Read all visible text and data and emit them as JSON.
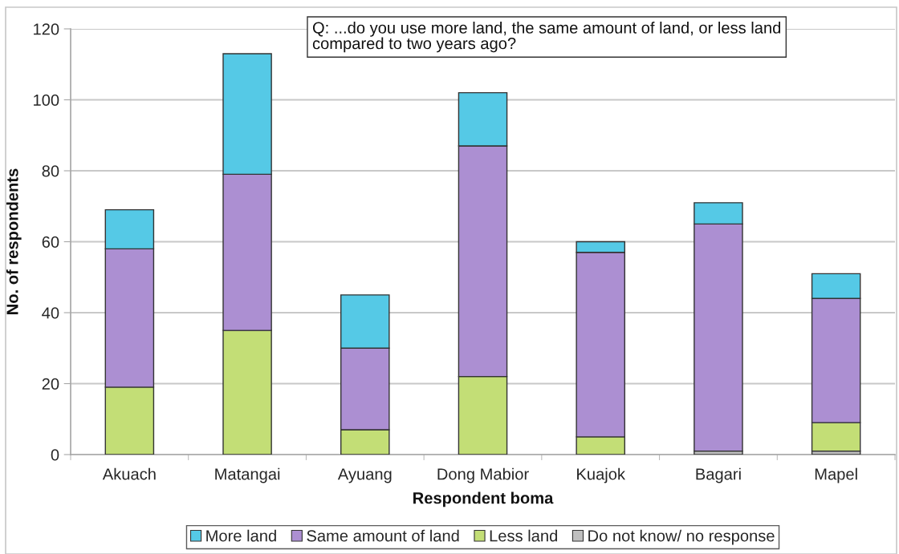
{
  "chart_data": {
    "type": "bar",
    "stacked": true,
    "xlabel": "Respondent boma",
    "ylabel": "No. of respondents",
    "annotations": [
      "Q: ...do you use more land, the same amount of land, or less land\ncompared to two years ago?"
    ],
    "categories": [
      "Akuach",
      "Matangai",
      "Ayuang",
      "Dong Mabior",
      "Kuajok",
      "Bagari",
      "Mapel"
    ],
    "series": [
      {
        "name": "Do not know/ no response",
        "color": "#bfbfbf",
        "values": [
          0,
          0,
          0,
          0,
          0,
          1,
          1
        ]
      },
      {
        "name": "Less land",
        "color": "#c3de76",
        "values": [
          19,
          35,
          7,
          22,
          5,
          0,
          8
        ]
      },
      {
        "name": "Same amount of land",
        "color": "#ac8fd2",
        "values": [
          39,
          44,
          23,
          65,
          52,
          64,
          35
        ]
      },
      {
        "name": "More land",
        "color": "#55c9e6",
        "values": [
          11,
          34,
          15,
          15,
          3,
          6,
          7
        ]
      }
    ],
    "ylim": [
      0,
      120
    ],
    "yticks": [
      0,
      20,
      40,
      60,
      80,
      100,
      120
    ],
    "grid": "y",
    "legend": "bottom"
  }
}
